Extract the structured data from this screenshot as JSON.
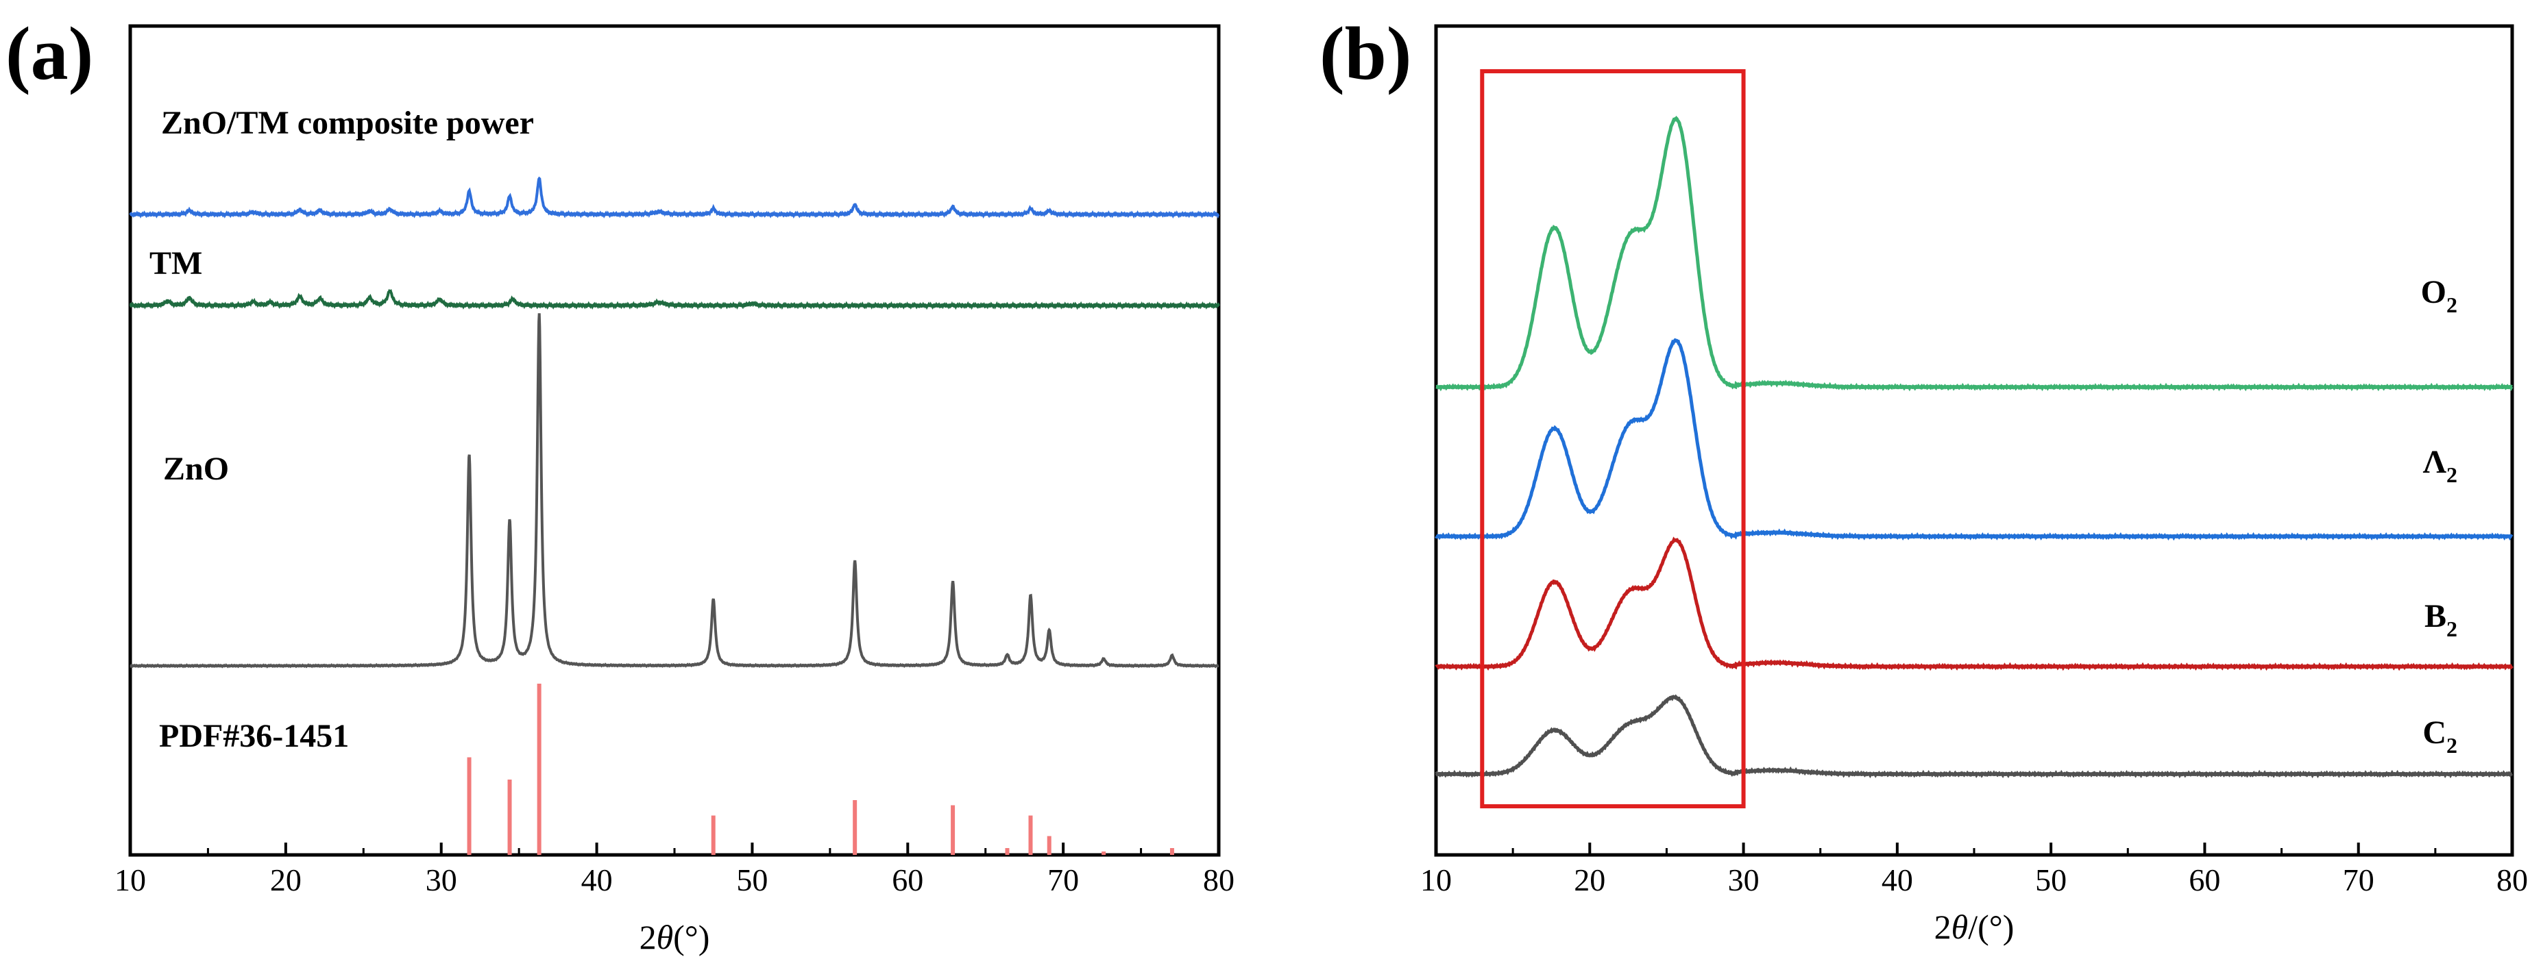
{
  "chart_data": [
    {
      "type": "line",
      "panel_label": "(a)",
      "title": "",
      "xlabel": {
        "prefix": "2",
        "italic": "θ",
        "suffix": "(°)"
      },
      "ylabel": "",
      "xlim": [
        10,
        80
      ],
      "xticks": [
        10,
        20,
        30,
        40,
        50,
        60,
        70,
        80
      ],
      "y_ticks_shown": false,
      "series": [
        {
          "name": "ZnO/TM composite power",
          "color": "#2f6fdc",
          "baseline": 0.0,
          "peaks": [
            {
              "x": 13.8,
              "h": 0.06,
              "w": 0.2
            },
            {
              "x": 17.9,
              "h": 0.035,
              "w": 0.25
            },
            {
              "x": 20.9,
              "h": 0.07,
              "w": 0.2
            },
            {
              "x": 22.2,
              "h": 0.06,
              "w": 0.2
            },
            {
              "x": 25.4,
              "h": 0.05,
              "w": 0.2
            },
            {
              "x": 26.7,
              "h": 0.08,
              "w": 0.2
            },
            {
              "x": 29.9,
              "h": 0.05,
              "w": 0.2
            },
            {
              "x": 31.8,
              "h": 0.36,
              "w": 0.16
            },
            {
              "x": 34.4,
              "h": 0.28,
              "w": 0.16
            },
            {
              "x": 36.3,
              "h": 0.55,
              "w": 0.16
            },
            {
              "x": 44.0,
              "h": 0.04,
              "w": 0.4
            },
            {
              "x": 47.5,
              "h": 0.09,
              "w": 0.16
            },
            {
              "x": 56.6,
              "h": 0.15,
              "w": 0.16
            },
            {
              "x": 62.9,
              "h": 0.12,
              "w": 0.16
            },
            {
              "x": 67.9,
              "h": 0.09,
              "w": 0.16
            },
            {
              "x": 69.1,
              "h": 0.06,
              "w": 0.16
            }
          ]
        },
        {
          "name": "TM",
          "color": "#1f6b40",
          "baseline": 0.0,
          "peaks": [
            {
              "x": 12.4,
              "h": 0.07,
              "w": 0.2
            },
            {
              "x": 13.8,
              "h": 0.12,
              "w": 0.2
            },
            {
              "x": 17.9,
              "h": 0.06,
              "w": 0.2
            },
            {
              "x": 19.0,
              "h": 0.05,
              "w": 0.2
            },
            {
              "x": 20.9,
              "h": 0.14,
              "w": 0.2
            },
            {
              "x": 22.2,
              "h": 0.11,
              "w": 0.2
            },
            {
              "x": 25.4,
              "h": 0.12,
              "w": 0.2
            },
            {
              "x": 26.7,
              "h": 0.22,
              "w": 0.2
            },
            {
              "x": 29.9,
              "h": 0.1,
              "w": 0.2
            },
            {
              "x": 34.6,
              "h": 0.1,
              "w": 0.2
            },
            {
              "x": 44.0,
              "h": 0.05,
              "w": 0.4
            },
            {
              "x": 50.0,
              "h": 0.03,
              "w": 0.3
            }
          ]
        },
        {
          "name": "ZnO",
          "color": "#555555",
          "baseline": 0.0,
          "peaks": [
            {
              "x": 31.8,
              "h": 0.6,
              "w": 0.15
            },
            {
              "x": 34.4,
              "h": 0.41,
              "w": 0.15
            },
            {
              "x": 36.3,
              "h": 1.0,
              "w": 0.15
            },
            {
              "x": 47.5,
              "h": 0.19,
              "w": 0.15
            },
            {
              "x": 56.6,
              "h": 0.3,
              "w": 0.15
            },
            {
              "x": 62.9,
              "h": 0.24,
              "w": 0.15
            },
            {
              "x": 66.4,
              "h": 0.03,
              "w": 0.15
            },
            {
              "x": 67.9,
              "h": 0.2,
              "w": 0.15
            },
            {
              "x": 69.1,
              "h": 0.1,
              "w": 0.15
            },
            {
              "x": 72.6,
              "h": 0.02,
              "w": 0.15
            },
            {
              "x": 77.0,
              "h": 0.03,
              "w": 0.15
            }
          ]
        },
        {
          "name": "PDF#36-1451",
          "color": "#f27a7a",
          "type": "stick",
          "sticks": [
            {
              "x": 31.8,
              "h": 57
            },
            {
              "x": 34.4,
              "h": 44
            },
            {
              "x": 36.3,
              "h": 100
            },
            {
              "x": 47.5,
              "h": 23
            },
            {
              "x": 56.6,
              "h": 32
            },
            {
              "x": 62.9,
              "h": 29
            },
            {
              "x": 66.4,
              "h": 4
            },
            {
              "x": 67.9,
              "h": 23
            },
            {
              "x": 69.1,
              "h": 11
            },
            {
              "x": 72.6,
              "h": 2
            },
            {
              "x": 77.0,
              "h": 4
            }
          ]
        }
      ]
    },
    {
      "type": "line",
      "panel_label": "(b)",
      "title": "",
      "xlabel": {
        "prefix": "2",
        "italic": "θ",
        "suffix": "/(°)"
      },
      "ylabel": "",
      "xlim": [
        10,
        80
      ],
      "xticks": [
        10,
        20,
        30,
        40,
        50,
        60,
        70,
        80
      ],
      "y_ticks_shown": false,
      "highlight_box": {
        "x_range": [
          13,
          30
        ],
        "color": "#e02020"
      },
      "series": [
        {
          "name": "O",
          "subscript": "2",
          "color": "#3cb371",
          "peaks": [
            {
              "x": 17.7,
              "h": 0.62,
              "w": 1.1
            },
            {
              "x": 22.7,
              "h": 0.58,
              "w": 1.3
            },
            {
              "x": 25.7,
              "h": 1.0,
              "w": 1.1
            }
          ]
        },
        {
          "name": "Λ",
          "subscript": "2",
          "color": "#2070d8",
          "peaks": [
            {
              "x": 17.7,
              "h": 0.42,
              "w": 1.1
            },
            {
              "x": 22.7,
              "h": 0.43,
              "w": 1.3
            },
            {
              "x": 25.7,
              "h": 0.73,
              "w": 1.1
            }
          ]
        },
        {
          "name": "B",
          "subscript": "2",
          "color": "#c41e1e",
          "peaks": [
            {
              "x": 17.7,
              "h": 0.33,
              "w": 1.1
            },
            {
              "x": 22.7,
              "h": 0.29,
              "w": 1.3
            },
            {
              "x": 25.7,
              "h": 0.47,
              "w": 1.1
            }
          ]
        },
        {
          "name": "C",
          "subscript": "2",
          "color": "#505050",
          "peaks": [
            {
              "x": 17.7,
              "h": 0.17,
              "w": 1.3
            },
            {
              "x": 22.7,
              "h": 0.19,
              "w": 1.5
            },
            {
              "x": 25.7,
              "h": 0.27,
              "w": 1.2
            }
          ]
        }
      ]
    }
  ]
}
